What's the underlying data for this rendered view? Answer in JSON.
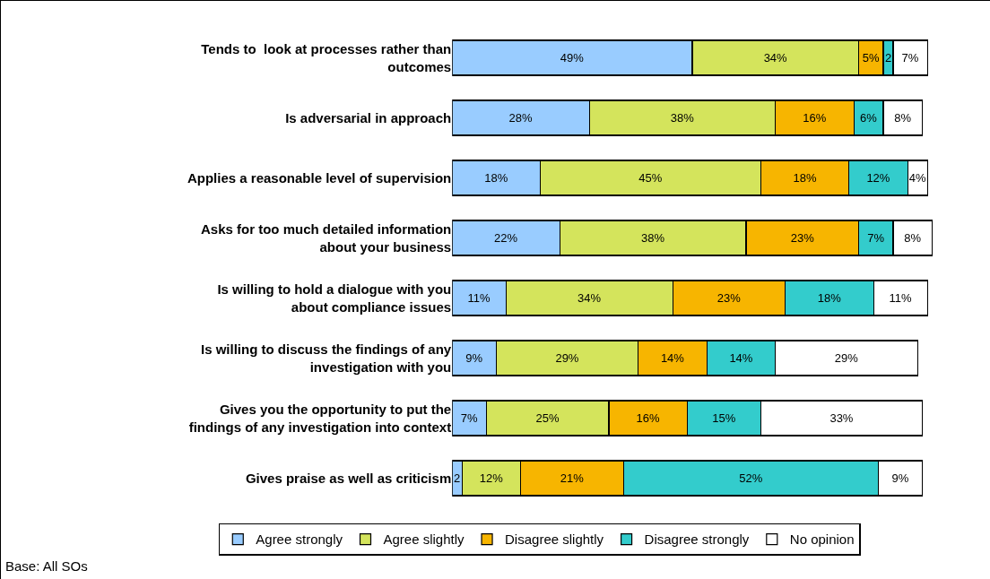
{
  "chart_data": {
    "type": "bar",
    "orientation": "horizontal",
    "stacked": true,
    "legend": "bottom",
    "categories": [
      "Tends to  look at processes rather than outcomes",
      "Is adversarial in approach",
      "Applies a reasonable level of supervision",
      "Asks for too much detailed information about your business",
      "Is willing to hold a dialogue with you about compliance issues",
      "Is willing to discuss the findings of any investigation with you",
      "Gives you the opportunity to put the findings of any investigation into context",
      "Gives praise as well as criticism"
    ],
    "series": [
      {
        "name": "Agree strongly",
        "color": "#99ccff",
        "values": [
          49,
          28,
          18,
          22,
          11,
          9,
          7,
          2
        ],
        "value_labels": [
          "49%",
          "28%",
          "18%",
          "22%",
          "11%",
          "9%",
          "7%",
          "2"
        ]
      },
      {
        "name": "Agree slightly",
        "color": "#d4e45c",
        "values": [
          34,
          38,
          45,
          38,
          34,
          29,
          25,
          12
        ],
        "value_labels": [
          "34%",
          "38%",
          "45%",
          "38%",
          "34%",
          "29%",
          "25%",
          "12%"
        ]
      },
      {
        "name": "Disagree slightly",
        "color": "#f7b500",
        "values": [
          5,
          16,
          18,
          23,
          23,
          14,
          16,
          21
        ],
        "value_labels": [
          "5%",
          "16%",
          "18%",
          "23%",
          "23%",
          "14%",
          "16%",
          "21%"
        ]
      },
      {
        "name": "Disagree strongly",
        "color": "#33cccc",
        "values": [
          2,
          6,
          12,
          7,
          18,
          14,
          15,
          52
        ],
        "value_labels": [
          "2",
          "6%",
          "12%",
          "7%",
          "18%",
          "14%",
          "15%",
          "52%"
        ]
      },
      {
        "name": "No opinion",
        "color": "#ffffff",
        "values": [
          7,
          8,
          4,
          8,
          11,
          29,
          33,
          9
        ],
        "value_labels": [
          "7%",
          "8%",
          "4%",
          "8%",
          "11%",
          "29%",
          "33%",
          "9%"
        ]
      }
    ],
    "annotations": [
      "Base: All SOs"
    ]
  }
}
